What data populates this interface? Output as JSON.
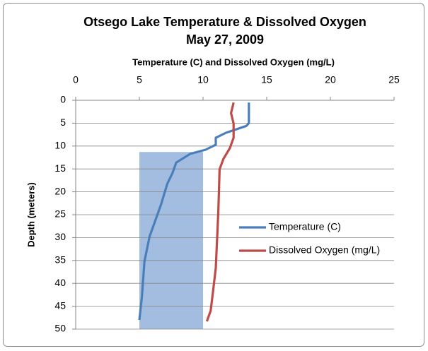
{
  "chart_data": {
    "type": "line",
    "title": "Otsego Lake Temperature & Dissolved Oxygen",
    "subtitle": "May 27, 2009",
    "x_label": "Temperature (C) and Dissolved Oxygen (mg/L)",
    "y_label": "Depth (meters)",
    "xlim": [
      0,
      25
    ],
    "xticks": [
      0,
      5,
      10,
      15,
      20,
      25
    ],
    "ylim": [
      0,
      50
    ],
    "yticks": [
      0,
      5,
      10,
      15,
      20,
      25,
      30,
      35,
      40,
      45,
      50
    ],
    "y_inverted": true,
    "x_axis_position": "top",
    "grid": true,
    "legend": "right",
    "band": {
      "color": "#a3bde0",
      "x": [
        5,
        10
      ],
      "y": [
        11.3,
        50
      ]
    },
    "series": [
      {
        "name": "Temperature (C)",
        "color": "#4a7ebb",
        "x": [
          13.6,
          13.6,
          13.4,
          11.8,
          11.0,
          11.0,
          10.2,
          9.0,
          7.9,
          7.6,
          7.2,
          6.7,
          5.8,
          5.4,
          5.2,
          5.0
        ],
        "y": [
          0.5,
          5,
          5.6,
          7.1,
          8.2,
          9.7,
          10.8,
          11.7,
          13.6,
          15.9,
          18.2,
          22.8,
          29.8,
          35.2,
          42.9,
          48
        ]
      },
      {
        "name": "Dissolved Oxygen (mg/L)",
        "color": "#be4b48",
        "x": [
          12.4,
          12.2,
          12.4,
          12.4,
          12.1,
          11.6,
          11.3,
          11.2,
          11.0,
          10.8,
          10.6,
          10.3
        ],
        "y": [
          0.5,
          2.8,
          5.1,
          8.2,
          10.5,
          12.8,
          15.1,
          24.4,
          36.7,
          41.4,
          46,
          48.3
        ]
      }
    ]
  }
}
